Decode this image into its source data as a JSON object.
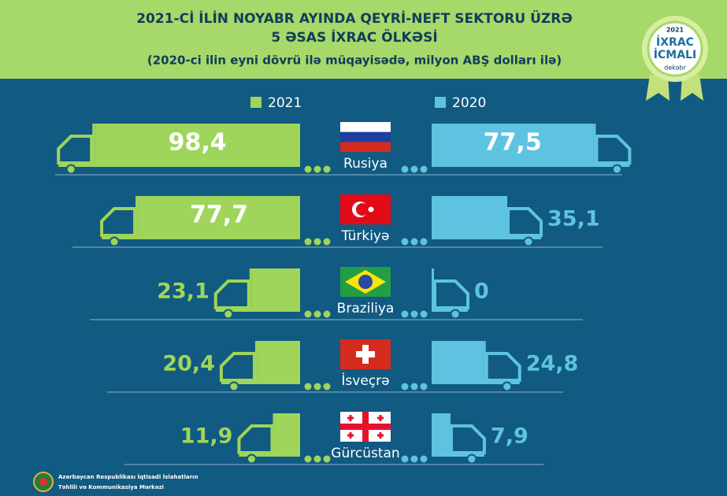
{
  "chart_data": {
    "type": "butterfly-bar",
    "title": [
      "2021-Cİ İLİN NOYABR AYINDA QEYRİ-NEFT SEKTORU ÜZRƏ",
      "5 ƏSAS İXRAC ÖLKƏSİ"
    ],
    "subtitle": "(2020-ci ilin eyni dövrü ilə müqayisədə, milyon ABŞ dolları ilə)",
    "badge": {
      "year": "2021",
      "name": [
        "İXRAC",
        "İCMALI"
      ],
      "month": "dekabr"
    },
    "categories": [
      "Rusiya",
      "Türkiyə",
      "Braziliya",
      "İsveçrə",
      "Gürcüstan"
    ],
    "series": [
      {
        "name": "2021",
        "color": "#9ed55a",
        "side": "left",
        "values": [
          98.4,
          77.7,
          23.1,
          20.4,
          11.9
        ],
        "value_labels": [
          "98,4",
          "77,7",
          "23,1",
          "20,4",
          "11,9"
        ]
      },
      {
        "name": "2020",
        "color": "#5ec3e0",
        "side": "right",
        "values": [
          77.5,
          35.1,
          0,
          24.8,
          7.9
        ],
        "value_labels": [
          "77,5",
          "35,1",
          "0",
          "24,8",
          "7,9"
        ]
      }
    ],
    "footer": [
      "Azərbaycan Respublikası İqtisadi İslahatların",
      "Təhlili və Kommunikasiya Mərkəzi"
    ]
  }
}
